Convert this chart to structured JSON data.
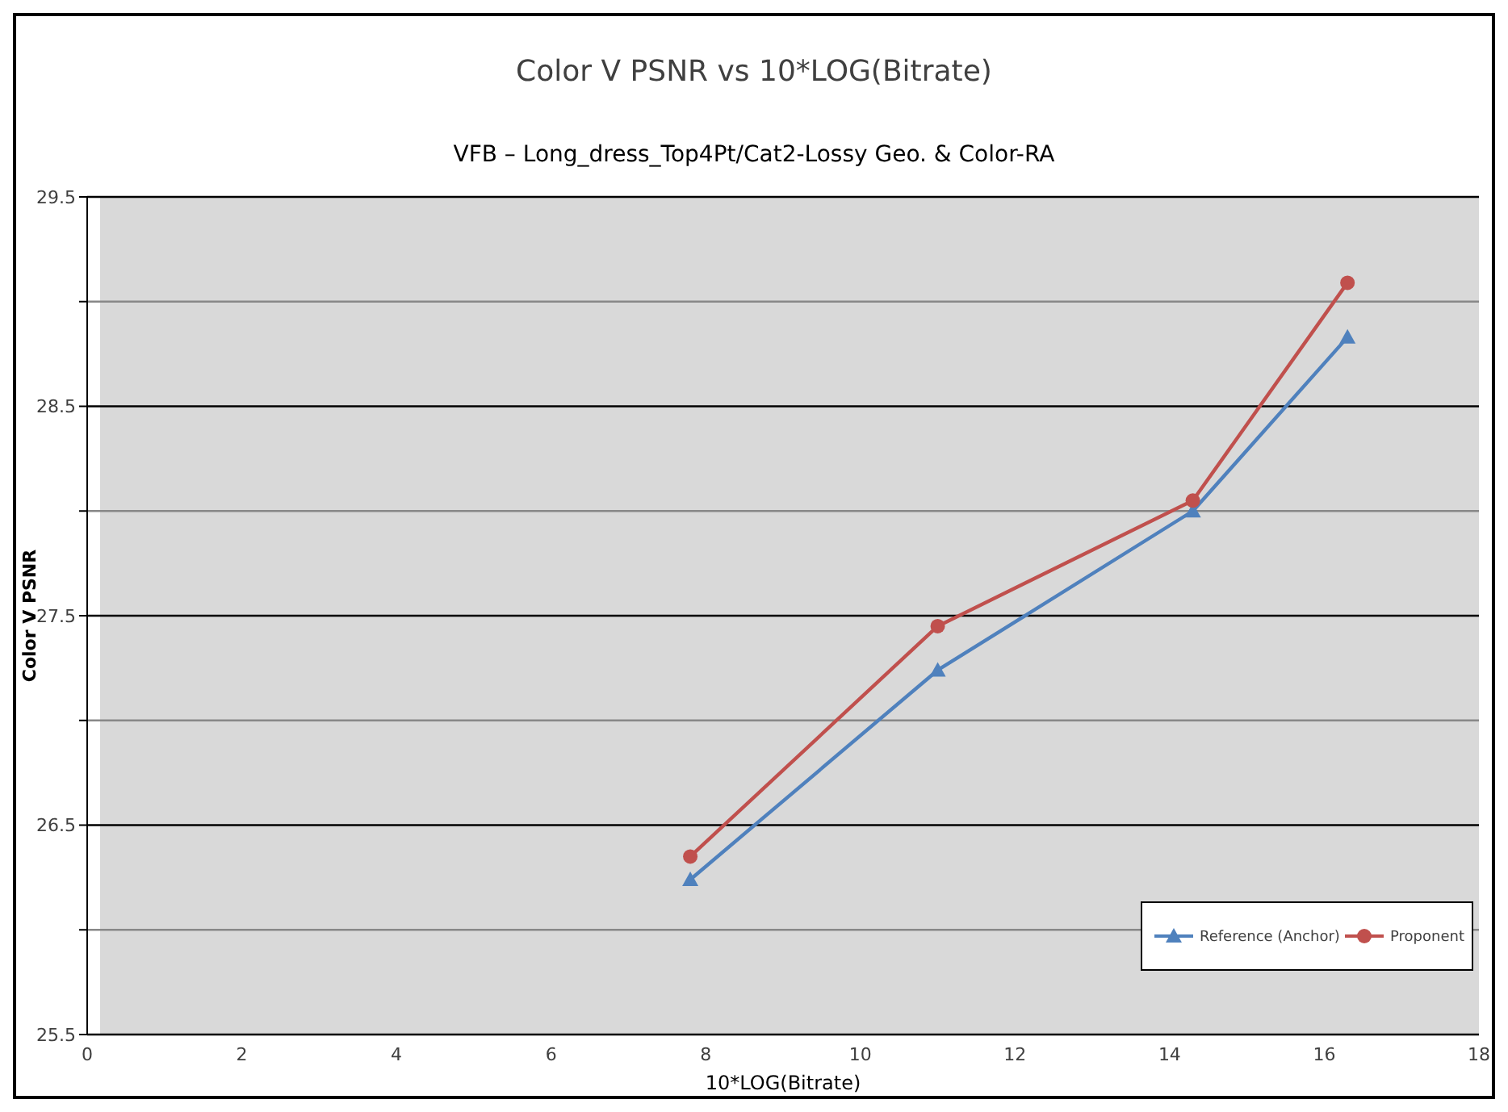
{
  "chart_data": {
    "type": "line",
    "title": "Color V PSNR vs 10*LOG(Bitrate)",
    "subtitle": "VFB – Long_dress_Top4Pt/Cat2-Lossy Geo. & Color-RA",
    "xlabel": "10*LOG(Bitrate)",
    "ylabel": "Color V PSNR",
    "series": [
      {
        "name": "Reference (Anchor)",
        "color": "#4f81bd",
        "marker": "triangle",
        "x": [
          7.8,
          11.0,
          14.3,
          16.3
        ],
        "values": [
          26.24,
          27.24,
          28.0,
          28.83
        ]
      },
      {
        "name": "Proponent",
        "color": "#c0504d",
        "marker": "circle",
        "x": [
          7.8,
          11.0,
          14.3,
          16.3
        ],
        "values": [
          26.35,
          27.45,
          28.05,
          29.09
        ]
      }
    ],
    "xlim": [
      0,
      18
    ],
    "xticks": [
      0,
      2,
      4,
      6,
      8,
      10,
      12,
      14,
      16,
      18
    ],
    "ylim": [
      25.5,
      29.5
    ],
    "yticks": [
      25.5,
      {
        "value": 26,
        "label": null
      },
      26.5,
      {
        "value": 27,
        "label": null
      },
      27.5,
      {
        "value": 28,
        "label": null
      },
      28.5,
      {
        "value": 29,
        "label": null
      },
      29.5
    ],
    "grid": "y",
    "legend": "bottom right",
    "line_style": "solid"
  }
}
